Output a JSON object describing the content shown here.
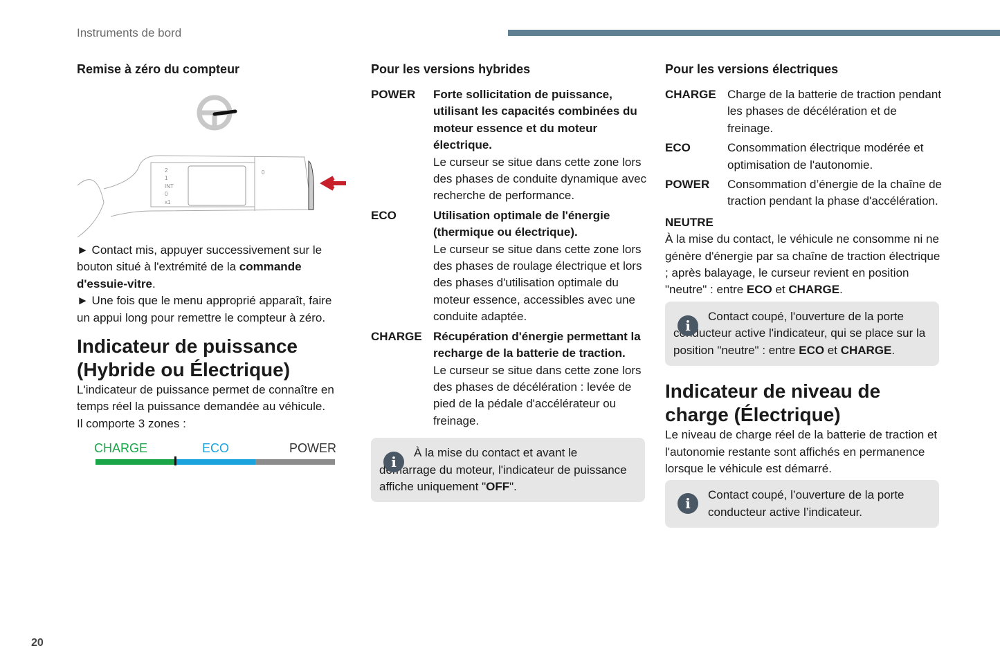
{
  "header": {
    "section": "Instruments de bord",
    "accent_color": "#5f7f93"
  },
  "col1": {
    "heading": "Remise à zéro du compteur",
    "illustration": {
      "labels": [
        "2",
        "1",
        "INT",
        "0",
        "x1",
        "0"
      ]
    },
    "step1": {
      "pre": "► Contact mis, appuyer successivement sur le bouton situé à l'extrémité de la ",
      "bold": "commande d'essuie-vitre",
      "post": "."
    },
    "step2": "► Une fois que le menu approprié apparaît, faire un appui long pour remettre le compteur à zéro.",
    "title": "Indicateur de puissance (Hybride ou Électrique)",
    "intro": "L'indicateur de puissance permet de connaître en temps réel la puissance demandée au véhicule.",
    "zones": "Il comporte 3 zones :",
    "gauge": {
      "labels": [
        "CHARGE",
        "ECO",
        "POWER"
      ],
      "colors": [
        "#1aa548",
        "#1ba3dd",
        "#8c8c8c"
      ]
    }
  },
  "col2": {
    "heading": "Pour les versions hybrides",
    "items": [
      {
        "term": "POWER",
        "bold": "Forte sollicitation de puissance, utilisant les capacités combinées du moteur essence et du moteur électrique.",
        "text": "Le curseur se situe dans cette zone lors des phases de conduite dynamique avec recherche de performance."
      },
      {
        "term": "ECO",
        "bold": "Utilisation optimale de l'énergie (thermique ou électrique).",
        "text": "Le curseur se situe dans cette zone lors des phases de roulage électrique et lors des phases d'utilisation optimale du moteur essence, accessibles avec une conduite adaptée."
      },
      {
        "term": "CHARGE",
        "bold": "Récupération d'énergie permettant la recharge de la batterie de traction.",
        "text": "Le curseur se situe dans cette zone lors des phases de décélération : levée de pied de la pédale d'accélérateur ou freinage."
      }
    ],
    "note": {
      "pre": "À la mise du contact et avant le démarrage du moteur, l'indicateur de puissance affiche uniquement \"",
      "bold": "OFF",
      "post": "\"."
    }
  },
  "col3": {
    "heading": "Pour les versions électriques",
    "items": [
      {
        "term": "CHARGE",
        "text": "Charge de la batterie de traction pendant les phases de décélération et de freinage."
      },
      {
        "term": "ECO",
        "text": "Consommation électrique modérée et optimisation de l'autonomie."
      },
      {
        "term": "POWER",
        "text": "Consommation d’énergie de la chaîne de traction pendant la phase d'accélération."
      }
    ],
    "neutre_title": "NEUTRE",
    "neutre": {
      "pre": "À la mise du contact, le véhicule ne consomme ni ne génère d'énergie par sa chaîne de traction électrique ; après balayage, le curseur revient en position \"neutre\" : entre ",
      "b1": "ECO",
      "mid": " et ",
      "b2": "CHARGE",
      "post": "."
    },
    "note1": {
      "pre": "Contact coupé, l'ouverture de la porte conducteur active l'indicateur, qui se place sur la position \"neutre\" : entre ",
      "b1": "ECO",
      "mid": " et ",
      "b2": "CHARGE",
      "post": "."
    },
    "title": "Indicateur de niveau de charge (Électrique)",
    "intro": "Le niveau de charge réel de la batterie de traction et l'autonomie restante sont affichés en permanence lorsque le véhicule est démarré.",
    "note2": "Contact coupé, l’ouverture de la porte conducteur active l’indicateur."
  },
  "page_number": "20"
}
